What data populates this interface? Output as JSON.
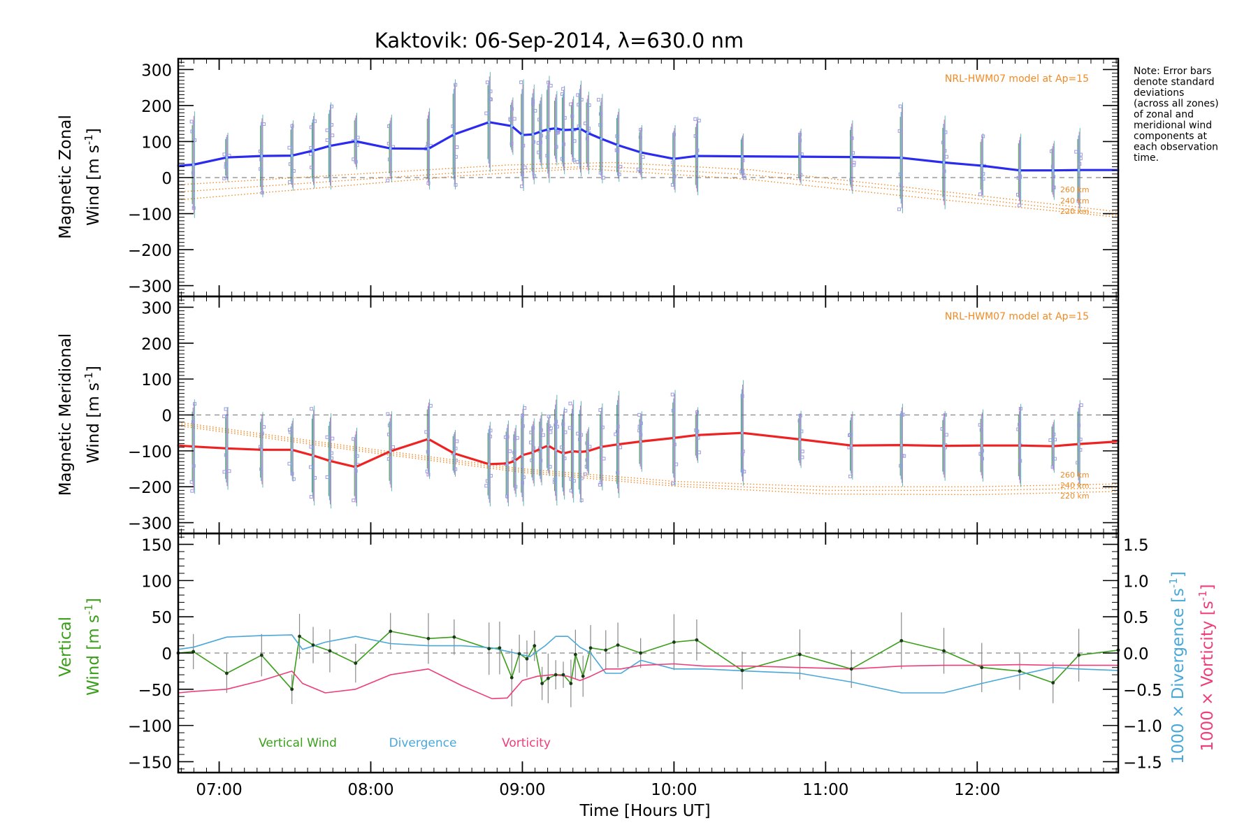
{
  "figure": {
    "title": "Kaktovik: 06-Sep-2014, λ=630.0 nm",
    "note": [
      "Note: Error bars",
      "denote standard",
      "deviations",
      "(across all zones)",
      "of zonal and",
      "meridional wind",
      "components at",
      "each observation",
      "time."
    ],
    "xlabel": "Time [Hours UT]",
    "xticks": [
      "07:00",
      "08:00",
      "09:00",
      "10:00",
      "11:00",
      "12:00"
    ],
    "xtick_values": [
      7,
      8,
      9,
      10,
      11,
      12
    ],
    "xlim": [
      6.73,
      12.93
    ]
  },
  "colors": {
    "zonal": "#2b2bf0",
    "meridional": "#ee2222",
    "vertical": "#3a9e1a",
    "divergence": "#4aa8d8",
    "vorticity": "#ee3d7a",
    "model": "#f08a24",
    "zone_points": "#9a9ae0"
  },
  "chart_data": [
    {
      "type": "line",
      "name": "zonal",
      "ylabel": "Magnetic Zonal Wind [m s⁻¹]",
      "ylim": [
        -330,
        330
      ],
      "yticks": [
        -300,
        -200,
        -100,
        0,
        100,
        200,
        300
      ],
      "model_label": "NRL-HWM07 model at Ap=15",
      "model_altitudes": [
        "260 km",
        "240 km",
        "220 km"
      ],
      "x": [
        6.73,
        6.83,
        7.05,
        7.28,
        7.48,
        7.62,
        7.73,
        7.9,
        8.13,
        8.38,
        8.55,
        8.78,
        8.93,
        9.0,
        9.07,
        9.12,
        9.17,
        9.22,
        9.27,
        9.33,
        9.38,
        9.43,
        9.52,
        9.63,
        9.78,
        10.0,
        10.15,
        10.45,
        10.83,
        11.17,
        11.5,
        11.78,
        12.03,
        12.28,
        12.5,
        12.67,
        12.93
      ],
      "values": [
        33,
        36,
        56,
        60,
        61,
        75,
        88,
        101,
        81,
        80,
        120,
        154,
        143,
        118,
        120,
        128,
        134,
        137,
        132,
        133,
        136,
        124,
        108,
        90,
        70,
        52,
        60,
        59,
        58,
        57,
        55,
        42,
        33,
        20,
        20,
        21,
        21
      ],
      "model_series": [
        {
          "name": "260 km",
          "x": [
            6.73,
            8.6,
            9.4,
            10.5,
            11.5,
            12.93
          ],
          "values": [
            -62,
            5,
            25,
            -5,
            -50,
            -110
          ]
        },
        {
          "name": "240 km",
          "x": [
            6.73,
            8.8,
            9.5,
            10.5,
            11.5,
            12.93
          ],
          "values": [
            -40,
            20,
            32,
            8,
            -35,
            -105
          ]
        },
        {
          "name": "220 km",
          "x": [
            6.73,
            8.9,
            9.6,
            10.5,
            11.5,
            12.93
          ],
          "values": [
            -20,
            35,
            42,
            22,
            -25,
            -95
          ]
        }
      ]
    },
    {
      "type": "line",
      "name": "meridional",
      "ylabel": "Magnetic Meridional Wind [m s⁻¹]",
      "ylim": [
        -330,
        330
      ],
      "yticks": [
        -300,
        -200,
        -100,
        0,
        100,
        200,
        300
      ],
      "model_label": "NRL-HWM07 model at Ap=15",
      "model_altitudes": [
        "260 km",
        "240 km",
        "220 km"
      ],
      "x": [
        6.73,
        6.83,
        7.05,
        7.28,
        7.48,
        7.62,
        7.73,
        7.9,
        8.13,
        8.38,
        8.55,
        8.78,
        8.9,
        8.95,
        9.0,
        9.07,
        9.12,
        9.17,
        9.22,
        9.27,
        9.33,
        9.38,
        9.43,
        9.52,
        9.63,
        9.78,
        10.0,
        10.15,
        10.45,
        10.83,
        11.17,
        11.5,
        11.78,
        12.03,
        12.28,
        12.5,
        12.67,
        12.93
      ],
      "values": [
        -85,
        -88,
        -93,
        -97,
        -97,
        -113,
        -128,
        -145,
        -101,
        -67,
        -107,
        -137,
        -135,
        -128,
        -112,
        -104,
        -94,
        -85,
        -98,
        -107,
        -101,
        -103,
        -101,
        -89,
        -82,
        -74,
        -64,
        -56,
        -50,
        -68,
        -85,
        -84,
        -86,
        -85,
        -85,
        -87,
        -81,
        -74
      ],
      "model_series": [
        {
          "name": "260 km",
          "x": [
            6.73,
            8.0,
            9.0,
            10.0,
            11.0,
            12.0,
            12.93
          ],
          "values": [
            -20,
            -95,
            -150,
            -185,
            -200,
            -200,
            -192
          ]
        },
        {
          "name": "240 km",
          "x": [
            6.73,
            8.0,
            9.0,
            10.0,
            11.0,
            12.0,
            12.93
          ],
          "values": [
            -25,
            -100,
            -155,
            -192,
            -210,
            -210,
            -203
          ]
        },
        {
          "name": "220 km",
          "x": [
            6.73,
            8.0,
            9.0,
            10.0,
            11.0,
            12.0,
            12.93
          ],
          "values": [
            -30,
            -105,
            -160,
            -198,
            -220,
            -222,
            -213
          ]
        }
      ]
    },
    {
      "type": "line",
      "name": "vertical",
      "ylabel": "Vertical Wind [m s⁻¹]",
      "ylim": [
        -165,
        165
      ],
      "yticks": [
        -150,
        -100,
        -50,
        0,
        50,
        100,
        150
      ],
      "y2label_divergence": "1000 × Divergence [s⁻¹]",
      "y2label_vorticity": "1000 × Vorticity [s⁻¹]",
      "y2lim": [
        -1.65,
        1.65
      ],
      "y2ticks": [
        -1.5,
        -1.0,
        -0.5,
        0.0,
        0.5,
        1.0,
        1.5
      ],
      "legend": [
        "Vertical Wind",
        "Divergence",
        "Vorticity"
      ],
      "series": [
        {
          "name": "Vertical Wind",
          "x": [
            6.73,
            6.83,
            7.05,
            7.28,
            7.48,
            7.53,
            7.62,
            7.73,
            7.9,
            8.13,
            8.38,
            8.55,
            8.78,
            8.85,
            8.93,
            8.98,
            9.03,
            9.08,
            9.13,
            9.17,
            9.22,
            9.27,
            9.32,
            9.35,
            9.4,
            9.45,
            9.55,
            9.63,
            9.78,
            10.0,
            10.15,
            10.45,
            10.83,
            11.17,
            11.5,
            11.78,
            12.03,
            12.28,
            12.5,
            12.67,
            12.93
          ],
          "values": [
            0,
            2,
            -28,
            -3,
            -50,
            23,
            11,
            3,
            -14,
            30,
            20,
            22,
            6,
            7,
            -34,
            -1,
            -8,
            10,
            -42,
            -35,
            -30,
            -30,
            -42,
            -2,
            -32,
            7,
            4,
            11,
            0,
            15,
            18,
            -24,
            -2,
            -22,
            17,
            3,
            -20,
            -25,
            -41,
            -3,
            4
          ]
        },
        {
          "name": "Divergence",
          "x": [
            6.73,
            6.83,
            7.05,
            7.28,
            7.48,
            7.55,
            7.7,
            7.9,
            8.13,
            8.38,
            8.6,
            8.8,
            8.95,
            9.05,
            9.15,
            9.22,
            9.3,
            9.38,
            9.45,
            9.55,
            9.65,
            9.78,
            10.0,
            10.2,
            10.5,
            10.83,
            11.17,
            11.5,
            11.78,
            12.03,
            12.28,
            12.5,
            12.67,
            12.93
          ],
          "values": [
            0.05,
            0.08,
            0.22,
            0.24,
            0.25,
            0.05,
            0.15,
            0.23,
            0.13,
            0.1,
            0.1,
            0.07,
            0.0,
            -0.05,
            0.1,
            0.23,
            0.23,
            0.08,
            0.0,
            -0.28,
            -0.28,
            -0.1,
            -0.22,
            -0.22,
            -0.25,
            -0.28,
            -0.4,
            -0.55,
            -0.55,
            -0.42,
            -0.3,
            -0.2,
            -0.22,
            -0.24
          ]
        },
        {
          "name": "Vorticity",
          "x": [
            6.73,
            6.83,
            7.05,
            7.28,
            7.48,
            7.55,
            7.7,
            7.9,
            8.13,
            8.38,
            8.6,
            8.8,
            8.9,
            9.0,
            9.1,
            9.2,
            9.3,
            9.38,
            9.45,
            9.55,
            9.65,
            9.78,
            10.0,
            10.2,
            10.5,
            10.83,
            11.17,
            11.5,
            11.78,
            12.03,
            12.28,
            12.5,
            12.67,
            12.93
          ],
          "values": [
            -0.55,
            -0.53,
            -0.5,
            -0.38,
            -0.25,
            -0.42,
            -0.55,
            -0.5,
            -0.3,
            -0.22,
            -0.45,
            -0.63,
            -0.62,
            -0.38,
            -0.32,
            -0.3,
            -0.32,
            -0.38,
            -0.32,
            -0.22,
            -0.22,
            -0.17,
            -0.15,
            -0.18,
            -0.18,
            -0.2,
            -0.22,
            -0.18,
            -0.17,
            -0.17,
            -0.16,
            -0.17,
            -0.17,
            -0.17
          ]
        }
      ]
    }
  ]
}
